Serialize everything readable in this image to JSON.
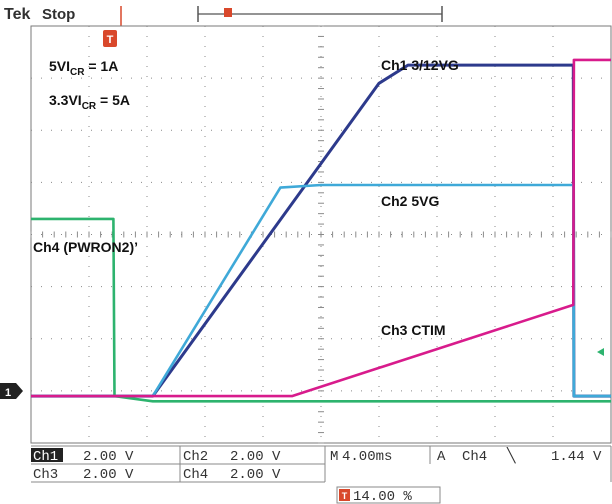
{
  "header": {
    "brand": "Tek",
    "state": "Stop"
  },
  "annotations": {
    "cond1_main": "5VI",
    "cond1_sub": "CR",
    "cond1_rest": " = 1A",
    "cond2_main": "3.3VI",
    "cond2_sub": "CR",
    "cond2_rest": " = 5A"
  },
  "status": {
    "row1": [
      {
        "label": "Ch1",
        "value": "2.00 V"
      },
      {
        "label": "Ch2",
        "value": "2.00 V"
      }
    ],
    "row2": [
      {
        "label": "Ch3",
        "value": "2.00 V"
      },
      {
        "label": "Ch4",
        "value": "2.00 V"
      }
    ],
    "timebase_prefix": "M",
    "timebase": "4.00ms",
    "trigger_mode": "A",
    "trigger_source": "Ch4",
    "trigger_slope": "╲",
    "trigger_level": "1.44 V",
    "trigger_position": "14.00 %"
  },
  "colors": {
    "ch1": "#2d3a8c",
    "ch2": "#3fa9d8",
    "ch3": "#d81b8c",
    "ch4": "#2db36e",
    "grid": "#8a8a8a",
    "trigger_marker": "#d9482b"
  },
  "chart_data": {
    "type": "line",
    "x_unit": "div",
    "y_unit": "div",
    "xlim": [
      0,
      10
    ],
    "ylim": [
      -4,
      4
    ],
    "grid": true,
    "series": [
      {
        "name": "Ch1 3/12VG",
        "x": [
          0,
          2.1,
          6.0,
          6.5,
          7.1,
          9.35,
          9.36,
          10
        ],
        "y": [
          -3.1,
          -3.1,
          2.9,
          3.25,
          3.25,
          3.25,
          -3.1,
          -3.1
        ]
      },
      {
        "name": "Ch2 5VG",
        "x": [
          0,
          2.1,
          4.3,
          5.0,
          9.35,
          9.36,
          10
        ],
        "y": [
          -3.1,
          -3.1,
          0.9,
          0.95,
          0.95,
          -3.1,
          -3.1
        ]
      },
      {
        "name": "Ch3 CTIM",
        "x": [
          0,
          2.1,
          4.5,
          9.35,
          9.36,
          10
        ],
        "y": [
          -3.1,
          -3.1,
          -3.1,
          -1.35,
          3.35,
          3.35
        ]
      },
      {
        "name": "Ch4 (PWRON2)’",
        "x": [
          0,
          1.42,
          1.44,
          2.1,
          10
        ],
        "y": [
          0.3,
          0.3,
          -3.1,
          -3.2,
          -3.2
        ]
      }
    ],
    "labels": [
      "Ch1 3/12VG",
      "Ch2 5VG",
      "Ch3 CTIM",
      "Ch4 (PWRON2)’"
    ]
  }
}
